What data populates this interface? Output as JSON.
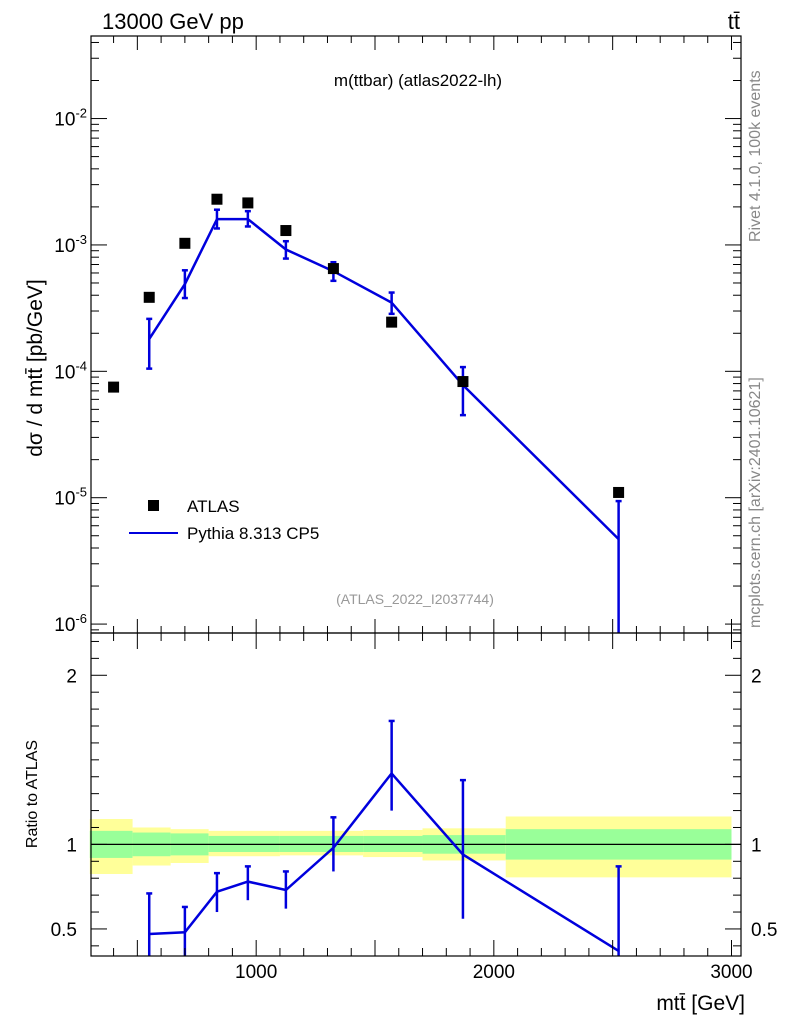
{
  "header": {
    "energy_label": "13000 GeV pp",
    "process_label": "tt̄"
  },
  "side": {
    "rivet_label": "Rivet 4.1.0,  100k events",
    "mcplots_label": "mcplots.cern.ch [arXiv:2401.10621]"
  },
  "chart_data": [
    {
      "type": "scatter",
      "title": "m(ttbar) (atlas2022-lh)",
      "analysis_label": "(ATLAS_2022_I2037744)",
      "ylabel": "dσ / d mtt̄ [pb/GeV]",
      "yscale": "log",
      "ylim": [
        8.5e-07,
        0.045
      ],
      "xlim": [
        305,
        3040
      ],
      "ytick_labels": [
        "10^-6",
        "10^-5",
        "10^-4",
        "10^-3",
        "10^-2"
      ],
      "legend": [
        {
          "label": "ATLAS",
          "style": "marker"
        },
        {
          "label": "Pythia 8.313 CP5",
          "style": "line"
        }
      ],
      "series": [
        {
          "name": "ATLAS",
          "color": "#000000",
          "x": [
            400,
            550,
            700,
            835,
            965,
            1125,
            1325,
            1570,
            1870,
            2525
          ],
          "y": [
            7.5e-05,
            0.000385,
            0.00103,
            0.0023,
            0.00215,
            0.0013,
            0.00065,
            0.000245,
            8.3e-05,
            1.1e-05
          ]
        },
        {
          "name": "Pythia 8.313 CP5",
          "color": "#0000dd",
          "x": [
            550,
            700,
            835,
            965,
            1125,
            1325,
            1570,
            1870,
            2525
          ],
          "y": [
            0.00018,
            0.00049,
            0.0016,
            0.0016,
            0.00092,
            0.00062,
            0.00035,
            7.8e-05,
            4.7e-06
          ],
          "y_low": [
            0.000105,
            0.00038,
            0.00135,
            0.0014,
            0.00078,
            0.00052,
            0.000285,
            4.5e-05,
            7e-07
          ],
          "y_high": [
            0.00026,
            0.00063,
            0.0019,
            0.00185,
            0.00107,
            0.00073,
            0.00042,
            0.000108,
            9.4e-06
          ]
        }
      ]
    },
    {
      "type": "line",
      "ylabel": "Ratio to ATLAS",
      "xlabel": "mtt̄ [GeV]",
      "xlim": [
        305,
        3040
      ],
      "ylim": [
        0.34,
        2.25
      ],
      "xtick_labels": [
        "1000",
        "2000",
        "3000"
      ],
      "ytick_labels": [
        "0.5",
        "1",
        "2"
      ],
      "data_band_edges": [
        300,
        480,
        640,
        800,
        1100,
        1450,
        1700,
        2050,
        3000
      ],
      "data_band_inner_low": [
        0.92,
        0.93,
        0.935,
        0.955,
        0.955,
        0.955,
        0.945,
        0.91
      ],
      "data_band_inner_high": [
        1.08,
        1.07,
        1.065,
        1.05,
        1.05,
        1.05,
        1.055,
        1.09
      ],
      "data_band_outer_low": [
        0.825,
        0.875,
        0.89,
        0.93,
        0.935,
        0.925,
        0.905,
        0.805
      ],
      "data_band_outer_high": [
        1.15,
        1.1,
        1.09,
        1.08,
        1.08,
        1.085,
        1.095,
        1.165
      ],
      "series": [
        {
          "name": "Pythia 8.313 CP5",
          "color": "#0000dd",
          "x": [
            550,
            700,
            835,
            965,
            1125,
            1325,
            1570,
            1870,
            2525
          ],
          "y": [
            0.47,
            0.48,
            0.72,
            0.78,
            0.73,
            0.98,
            1.42,
            0.94,
            0.37
          ],
          "y_low": [
            0.3,
            0.33,
            0.6,
            0.67,
            0.62,
            0.84,
            1.2,
            0.56,
            0.2
          ],
          "y_high": [
            0.71,
            0.63,
            0.83,
            0.87,
            0.84,
            1.16,
            1.73,
            1.38,
            0.87
          ]
        }
      ]
    }
  ]
}
